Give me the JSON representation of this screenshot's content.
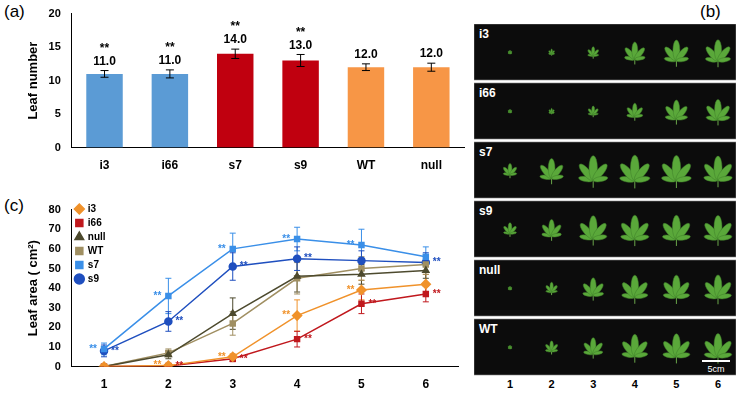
{
  "chart_data": [
    {
      "type": "bar",
      "title": "(a)",
      "categories": [
        "i3",
        "i66",
        "s7",
        "s9",
        "WT",
        "null"
      ],
      "values": [
        11,
        11,
        14,
        13,
        12,
        12
      ],
      "value_labels": [
        "11.0",
        "11.0",
        "14.0",
        "13.0",
        "12.0",
        "12.0"
      ],
      "errors": [
        0.5,
        0.6,
        0.7,
        0.9,
        0.5,
        0.6
      ],
      "annotations": [
        "**",
        "**",
        "**",
        "**",
        null,
        null
      ],
      "colors": [
        "#5b9bd5",
        "#5b9bd5",
        "#c0000f",
        "#c0000f",
        "#f79646",
        "#f79646"
      ],
      "y_label": "Leaf number",
      "ylim": [
        0,
        20
      ],
      "yticks": [
        0,
        5,
        10,
        15,
        20
      ],
      "grid": false,
      "data_labels": true
    },
    {
      "type": "line",
      "title": "(c)",
      "categories": [
        "1",
        "2",
        "3",
        "4",
        "5",
        "6"
      ],
      "y_label": "Leaf area ( cm²)",
      "ylim": [
        0,
        80
      ],
      "yticks": [
        0,
        10,
        20,
        30,
        40,
        50,
        60,
        70,
        80
      ],
      "grid": false,
      "legend": "top-left",
      "series": [
        {
          "name": "i3",
          "color": "#f0922b",
          "marker": "diamond",
          "values": [
            0,
            0.5,
            5,
            26,
            39,
            42
          ],
          "errors": [
            0,
            0.5,
            1.5,
            8,
            5,
            5
          ],
          "annotations": [
            null,
            "**",
            "**",
            "**",
            "**",
            null
          ]
        },
        {
          "name": "i66",
          "color": "#c0181d",
          "marker": "square",
          "values": [
            0,
            0.3,
            4,
            14,
            32,
            37
          ],
          "errors": [
            0,
            0.3,
            1.5,
            4,
            5,
            4
          ],
          "annotations": [
            null,
            "**",
            "**",
            "**",
            "**",
            "**"
          ]
        },
        {
          "name": "null",
          "color": "#4d4a2e",
          "marker": "triangle",
          "values": [
            0,
            6,
            27,
            46,
            47,
            49
          ],
          "errors": [
            0,
            2,
            8,
            8,
            5,
            4
          ]
        },
        {
          "name": "WT",
          "color": "#a08f62",
          "marker": "square",
          "values": [
            0,
            7,
            22,
            45,
            50,
            52
          ],
          "errors": [
            0,
            2,
            6,
            8,
            6,
            5
          ]
        },
        {
          "name": "s7",
          "color": "#3a8fe8",
          "marker": "square",
          "values": [
            9,
            36,
            60,
            65,
            62,
            56
          ],
          "errors": [
            3,
            9,
            8,
            6,
            8,
            5
          ],
          "annotations": [
            "**",
            "**",
            "**",
            "**",
            "**",
            null
          ]
        },
        {
          "name": "s9",
          "color": "#1f4fbf",
          "marker": "circle",
          "values": [
            8,
            23,
            51,
            55,
            54,
            53
          ],
          "errors": [
            3,
            5,
            7,
            6,
            5,
            5
          ],
          "annotations": [
            "**",
            "**",
            "**",
            "**",
            null,
            "**"
          ]
        }
      ]
    }
  ],
  "image_panel": {
    "title": "(b)",
    "rows": [
      "i3",
      "i66",
      "s7",
      "s9",
      "null",
      "WT"
    ],
    "positions": [
      "1",
      "2",
      "3",
      "4",
      "5",
      "6"
    ],
    "scale_bar": "5cm"
  }
}
